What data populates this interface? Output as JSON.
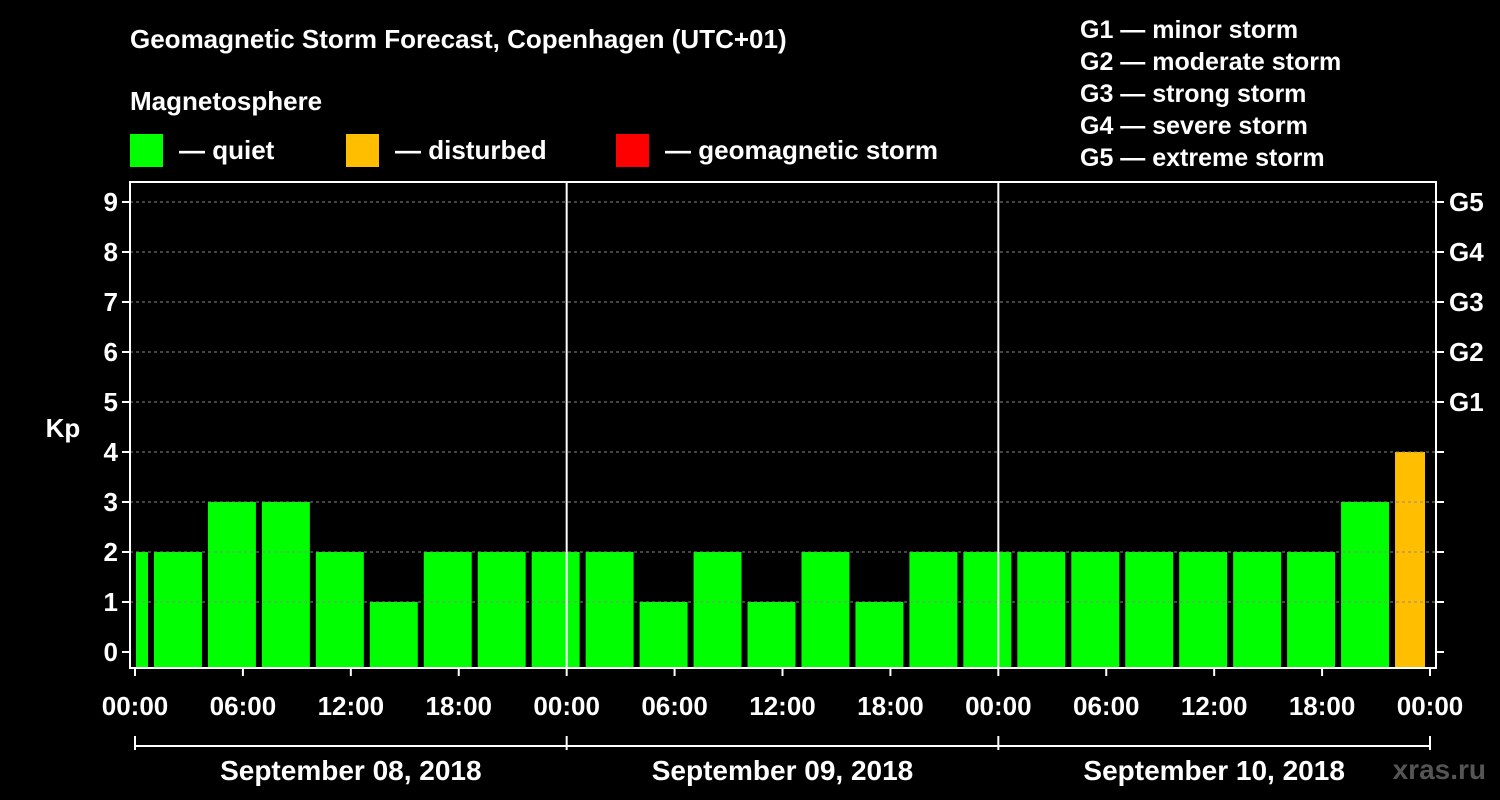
{
  "title": "Geomagnetic Storm Forecast, Copenhagen (UTC+01)",
  "subtitle": "Magnetosphere",
  "legend": [
    {
      "label": "— quiet",
      "color": "#00ff00"
    },
    {
      "label": "— disturbed",
      "color": "#ffbf00"
    },
    {
      "label": "— geomagnetic storm",
      "color": "#ff0000"
    }
  ],
  "storm_scale": [
    "G1 — minor storm",
    "G2 — moderate storm",
    "G3 — strong storm",
    "G4 — severe storm",
    "G5 — extreme storm"
  ],
  "watermark": "xras.ru",
  "chart_data": {
    "type": "bar",
    "ylabel": "Kp",
    "ylim": [
      0,
      9
    ],
    "y_ticks": [
      "0",
      "1",
      "2",
      "3",
      "4",
      "5",
      "6",
      "7",
      "8",
      "9"
    ],
    "right_ticks": [
      {
        "kp": 5,
        "label": "G1"
      },
      {
        "kp": 6,
        "label": "G2"
      },
      {
        "kp": 7,
        "label": "G3"
      },
      {
        "kp": 8,
        "label": "G4"
      },
      {
        "kp": 9,
        "label": "G5"
      }
    ],
    "x_ticks": [
      "00:00",
      "06:00",
      "12:00",
      "18:00",
      "00:00",
      "06:00",
      "12:00",
      "18:00",
      "00:00",
      "06:00",
      "12:00",
      "18:00",
      "00:00"
    ],
    "days": [
      "September 08, 2018",
      "September 09, 2018",
      "September 10, 2018"
    ],
    "x_hours_range": [
      0,
      72
    ],
    "bars": [
      {
        "start_hour": 0,
        "end_hour": 1,
        "kp": 2,
        "color": "#00ff00"
      },
      {
        "start_hour": 1,
        "end_hour": 4,
        "kp": 2,
        "color": "#00ff00"
      },
      {
        "start_hour": 4,
        "end_hour": 7,
        "kp": 3,
        "color": "#00ff00"
      },
      {
        "start_hour": 7,
        "end_hour": 10,
        "kp": 3,
        "color": "#00ff00"
      },
      {
        "start_hour": 10,
        "end_hour": 13,
        "kp": 2,
        "color": "#00ff00"
      },
      {
        "start_hour": 13,
        "end_hour": 16,
        "kp": 1,
        "color": "#00ff00"
      },
      {
        "start_hour": 16,
        "end_hour": 19,
        "kp": 2,
        "color": "#00ff00"
      },
      {
        "start_hour": 19,
        "end_hour": 22,
        "kp": 2,
        "color": "#00ff00"
      },
      {
        "start_hour": 22,
        "end_hour": 25,
        "kp": 2,
        "color": "#00ff00"
      },
      {
        "start_hour": 25,
        "end_hour": 28,
        "kp": 2,
        "color": "#00ff00"
      },
      {
        "start_hour": 28,
        "end_hour": 31,
        "kp": 1,
        "color": "#00ff00"
      },
      {
        "start_hour": 31,
        "end_hour": 34,
        "kp": 2,
        "color": "#00ff00"
      },
      {
        "start_hour": 34,
        "end_hour": 37,
        "kp": 1,
        "color": "#00ff00"
      },
      {
        "start_hour": 37,
        "end_hour": 40,
        "kp": 2,
        "color": "#00ff00"
      },
      {
        "start_hour": 40,
        "end_hour": 43,
        "kp": 1,
        "color": "#00ff00"
      },
      {
        "start_hour": 43,
        "end_hour": 46,
        "kp": 2,
        "color": "#00ff00"
      },
      {
        "start_hour": 46,
        "end_hour": 49,
        "kp": 2,
        "color": "#00ff00"
      },
      {
        "start_hour": 49,
        "end_hour": 52,
        "kp": 2,
        "color": "#00ff00"
      },
      {
        "start_hour": 52,
        "end_hour": 55,
        "kp": 2,
        "color": "#00ff00"
      },
      {
        "start_hour": 55,
        "end_hour": 58,
        "kp": 2,
        "color": "#00ff00"
      },
      {
        "start_hour": 58,
        "end_hour": 61,
        "kp": 2,
        "color": "#00ff00"
      },
      {
        "start_hour": 61,
        "end_hour": 64,
        "kp": 2,
        "color": "#00ff00"
      },
      {
        "start_hour": 64,
        "end_hour": 67,
        "kp": 2,
        "color": "#00ff00"
      },
      {
        "start_hour": 67,
        "end_hour": 70,
        "kp": 3,
        "color": "#00ff00"
      },
      {
        "start_hour": 70,
        "end_hour": 72,
        "kp": 4,
        "color": "#ffbf00"
      }
    ]
  }
}
